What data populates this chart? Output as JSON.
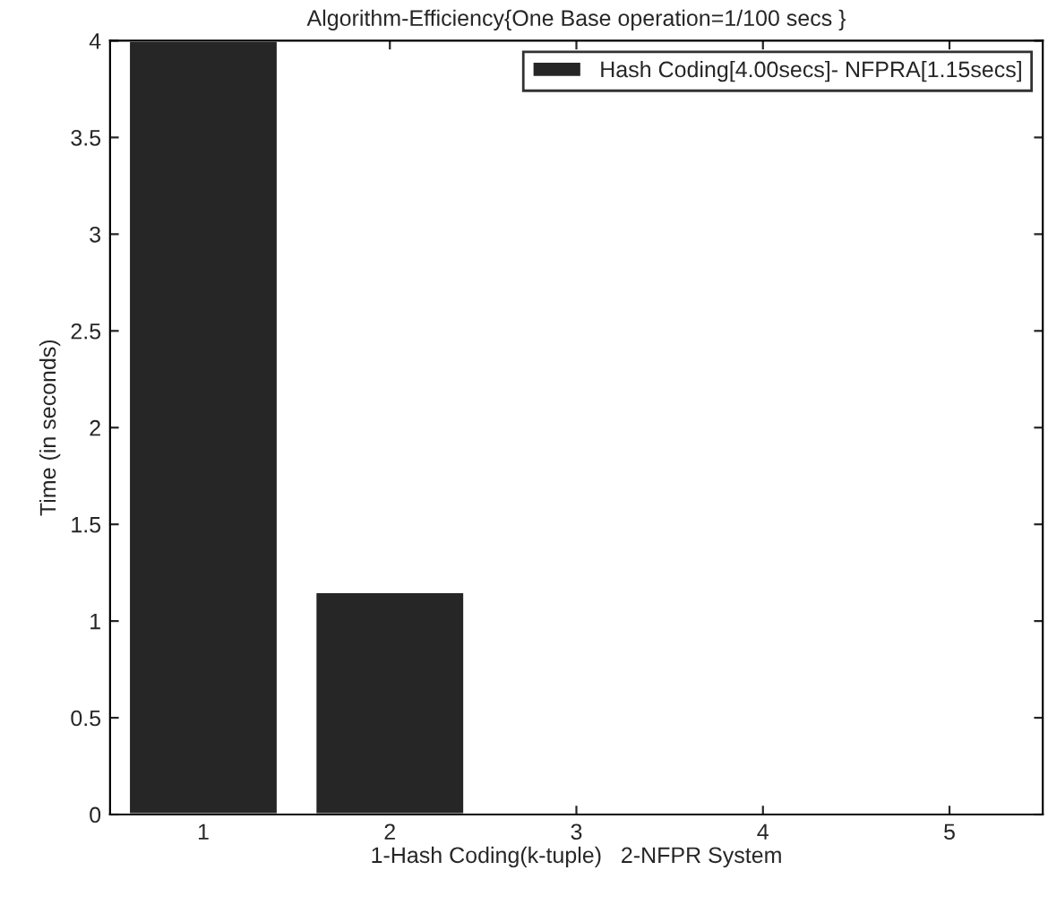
{
  "chart_data": {
    "type": "bar",
    "title": "Algorithm-Efficiency{One Base operation=1/100 secs }",
    "xlabel": "1-Hash Coding(k-tuple)   2-NFPR System",
    "ylabel": "Time (in seconds)",
    "x": [
      1,
      2
    ],
    "series": [
      {
        "name": "Hash Coding[4.00secs]- NFPRA[1.15secs]",
        "color": "#262626",
        "values": [
          4.0,
          1.15
        ]
      }
    ],
    "xlim": [
      0.5,
      5.5
    ],
    "xticks": [
      1,
      2,
      3,
      4,
      5
    ],
    "ylim": [
      0,
      4
    ],
    "yticks": [
      0,
      0.5,
      1,
      1.5,
      2,
      2.5,
      3,
      3.5,
      4
    ],
    "grid": false,
    "legend": "top right"
  }
}
